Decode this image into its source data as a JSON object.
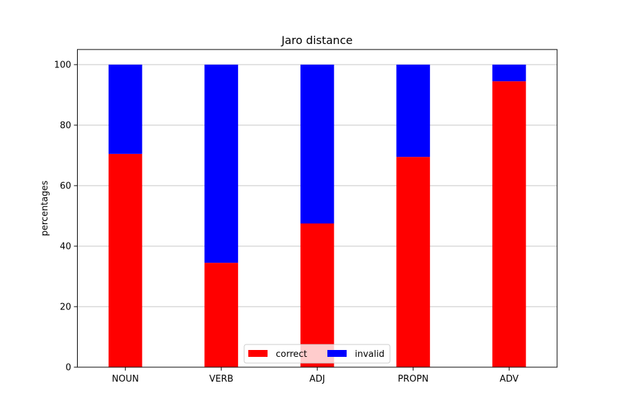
{
  "chart_data": {
    "type": "bar",
    "stacked": true,
    "title": "Jaro distance",
    "xlabel": "",
    "ylabel": "percentages",
    "categories": [
      "NOUN",
      "VERB",
      "ADJ",
      "PROPN",
      "ADV"
    ],
    "series": [
      {
        "name": "correct",
        "color": "#ff0000",
        "values": [
          70.5,
          34.5,
          47.5,
          69.5,
          94.5
        ]
      },
      {
        "name": "invalid",
        "color": "#0000ff",
        "values": [
          29.5,
          65.5,
          52.5,
          30.5,
          5.5
        ]
      }
    ],
    "ylim": [
      0,
      105
    ],
    "yticks": [
      0,
      20,
      40,
      60,
      80,
      100
    ],
    "grid": "y",
    "legend_position": "bottom-center"
  }
}
